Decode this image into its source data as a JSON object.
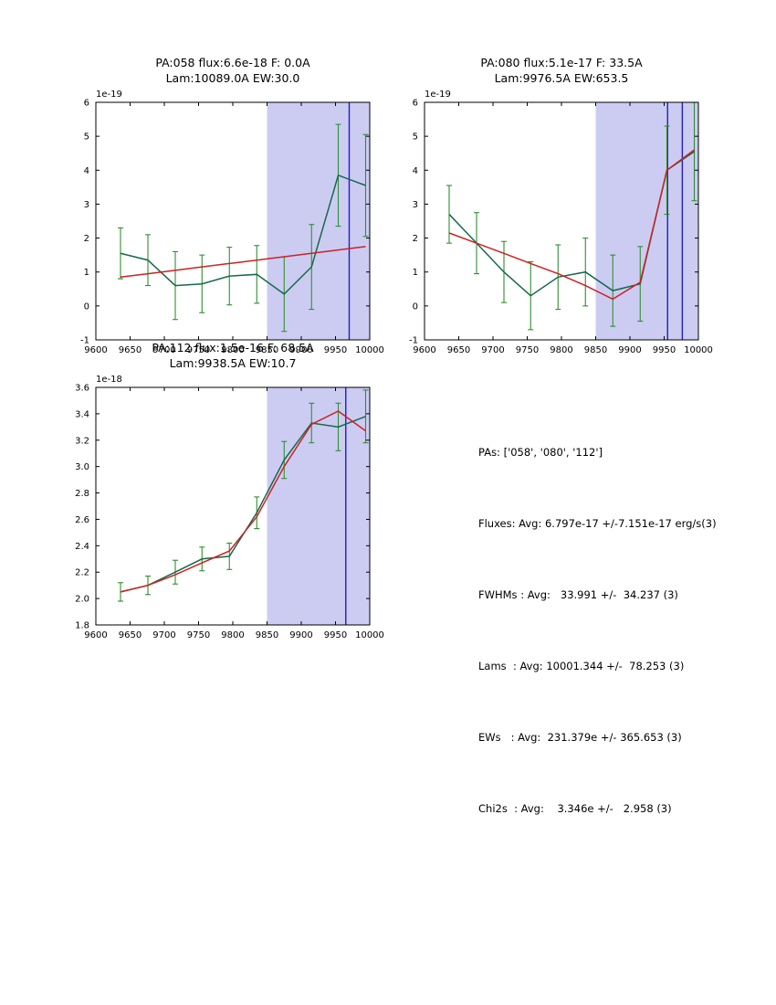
{
  "figure": {
    "background": "#ffffff"
  },
  "summary": {
    "lines": [
      "PAs: ['058', '080', '112']",
      "Fluxes: Avg: 6.797e-17 +/-7.151e-17 erg/s(3)",
      "FWHMs : Avg:   33.991 +/-  34.237 (3)",
      "Lams  : Avg: 10001.344 +/-  78.253 (3)",
      "EWs   : Avg:  231.379e +/- 365.653 (3)",
      "Chi2s  : Avg:    3.346e +/-   2.958 (3)"
    ]
  },
  "chart_data": [
    {
      "type": "line",
      "title_line1": "PA:058 flux:6.6e-18 F: 0.0A",
      "title_line2": "Lam:10089.0A EW:30.0",
      "offset_label": "1e-19",
      "xlim": [
        9600,
        10000
      ],
      "ylim": [
        -1,
        6
      ],
      "xticks": [
        9600,
        9650,
        9700,
        9750,
        9800,
        9850,
        9900,
        9950,
        10000
      ],
      "xticklabels": [
        "9600",
        "9650",
        "9700",
        "9750",
        "9800",
        "9850",
        "9900",
        "9950",
        "10000"
      ],
      "yticks": [
        -1,
        0,
        1,
        2,
        3,
        4,
        5,
        6
      ],
      "yticklabels": [
        "-1",
        "0",
        "1",
        "2",
        "3",
        "4",
        "5",
        "6"
      ],
      "shade": [
        9850,
        10000
      ],
      "vlines": [
        9970
      ],
      "colors": {
        "shade": "#ccccf3",
        "vline": "#2020c0",
        "errorbar": "#2f8f2f"
      },
      "grid": false,
      "legend": "none",
      "x": [
        9636,
        9676,
        9716,
        9755,
        9795,
        9835,
        9875,
        9915,
        9954,
        9994
      ],
      "series": [
        {
          "name": "spectrum",
          "color": "#16694b",
          "values": [
            1.55,
            1.35,
            0.6,
            0.65,
            0.88,
            0.93,
            0.35,
            1.15,
            3.85,
            3.55
          ],
          "errors": [
            0.75,
            0.75,
            1.0,
            0.85,
            0.85,
            0.85,
            1.1,
            1.25,
            1.5,
            1.5
          ]
        },
        {
          "name": "fit",
          "color": "#cc2222",
          "values": [
            0.85,
            0.95,
            1.05,
            1.15,
            1.25,
            1.35,
            1.45,
            1.55,
            1.65,
            1.75
          ]
        }
      ]
    },
    {
      "type": "line",
      "title_line1": "PA:080 flux:5.1e-17 F: 33.5A",
      "title_line2": "Lam:9976.5A EW:653.5",
      "offset_label": "1e-19",
      "xlim": [
        9600,
        10000
      ],
      "ylim": [
        -1,
        6
      ],
      "xticks": [
        9600,
        9650,
        9700,
        9750,
        9800,
        9850,
        9900,
        9950,
        10000
      ],
      "xticklabels": [
        "9600",
        "9650",
        "9700",
        "9750",
        "9800",
        "9850",
        "9900",
        "9950",
        "10000"
      ],
      "yticks": [
        -1,
        0,
        1,
        2,
        3,
        4,
        5,
        6
      ],
      "yticklabels": [
        "-1",
        "0",
        "1",
        "2",
        "3",
        "4",
        "5",
        "6"
      ],
      "shade": [
        9850,
        10000
      ],
      "vlines": [
        9955,
        9976.5
      ],
      "colors": {
        "shade": "#ccccf3",
        "vline": "#2020c0",
        "errorbar": "#2f8f2f"
      },
      "grid": false,
      "legend": "none",
      "x": [
        9636,
        9676,
        9716,
        9755,
        9795,
        9835,
        9875,
        9915,
        9954,
        9994
      ],
      "series": [
        {
          "name": "spectrum",
          "color": "#16694b",
          "values": [
            2.7,
            1.85,
            1.0,
            0.3,
            0.85,
            1.0,
            0.45,
            0.65,
            4.0,
            4.55
          ],
          "errors": [
            0.85,
            0.9,
            0.9,
            1.0,
            0.95,
            1.0,
            1.05,
            1.1,
            1.3,
            1.45
          ]
        },
        {
          "name": "fit",
          "color": "#cc2222",
          "values": [
            2.15,
            1.85,
            1.55,
            1.25,
            0.95,
            0.6,
            0.2,
            0.7,
            4.0,
            4.6
          ]
        }
      ]
    },
    {
      "type": "line",
      "title_line1": "PA:112 flux:1.5e-16 F: 68.5A",
      "title_line2": "Lam:9938.5A EW:10.7",
      "offset_label": "1e-18",
      "xlim": [
        9600,
        10000
      ],
      "ylim": [
        1.8,
        3.6
      ],
      "xticks": [
        9600,
        9650,
        9700,
        9750,
        9800,
        9850,
        9900,
        9950,
        10000
      ],
      "xticklabels": [
        "9600",
        "9650",
        "9700",
        "9750",
        "9800",
        "9850",
        "9900",
        "9950",
        "10000"
      ],
      "yticks": [
        1.8,
        2.0,
        2.2,
        2.4,
        2.6,
        2.8,
        3.0,
        3.2,
        3.4,
        3.6
      ],
      "yticklabels": [
        "1.8",
        "2.0",
        "2.2",
        "2.4",
        "2.6",
        "2.8",
        "3.0",
        "3.2",
        "3.4",
        "3.6"
      ],
      "shade": [
        9850,
        10000
      ],
      "vlines": [
        9965
      ],
      "colors": {
        "shade": "#ccccf3",
        "vline": "#2020c0",
        "errorbar": "#2f8f2f"
      },
      "grid": false,
      "legend": "none",
      "x": [
        9636,
        9676,
        9716,
        9755,
        9795,
        9835,
        9875,
        9915,
        9954,
        9994
      ],
      "series": [
        {
          "name": "spectrum",
          "color": "#16694b",
          "values": [
            2.05,
            2.1,
            2.2,
            2.3,
            2.32,
            2.65,
            3.05,
            3.33,
            3.3,
            3.38
          ],
          "errors": [
            0.07,
            0.07,
            0.09,
            0.09,
            0.1,
            0.12,
            0.14,
            0.15,
            0.18,
            0.2
          ]
        },
        {
          "name": "fit",
          "color": "#cc2222",
          "values": [
            2.05,
            2.1,
            2.18,
            2.27,
            2.36,
            2.62,
            3.0,
            3.32,
            3.42,
            3.27
          ]
        }
      ]
    }
  ]
}
